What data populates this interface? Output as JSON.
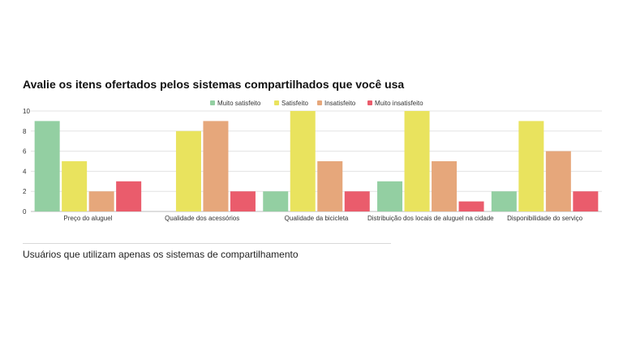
{
  "chart_data": {
    "type": "bar",
    "title": "Avalie os itens ofertados pelos sistemas compartilhados que você usa",
    "categories": [
      "Preço do aluguel",
      "Qualidade dos acessórios",
      "Qualidade da bicicleta",
      "Distribuição dos locais de aluguel na cidade",
      "Disponibilidade do serviço"
    ],
    "series": [
      {
        "name": "Muito satisfeito",
        "color": "#93cfa2",
        "values": [
          9,
          0,
          2,
          3,
          2
        ]
      },
      {
        "name": "Satisfeito",
        "color": "#e9e35e",
        "values": [
          5,
          8,
          10,
          10,
          9
        ]
      },
      {
        "name": "Insatisfeito",
        "color": "#e6a77b",
        "values": [
          2,
          9,
          5,
          5,
          6
        ]
      },
      {
        "name": "Muito insatisfeito",
        "color": "#ea5c6c",
        "values": [
          3,
          2,
          2,
          1,
          2
        ]
      }
    ],
    "yticks": [
      0,
      2,
      4,
      6,
      8,
      10
    ],
    "ylim": [
      0,
      10
    ],
    "grid": true,
    "legend": "top-center"
  },
  "caption": "Usuários que utilizam apenas os sistemas de compartilhamento"
}
